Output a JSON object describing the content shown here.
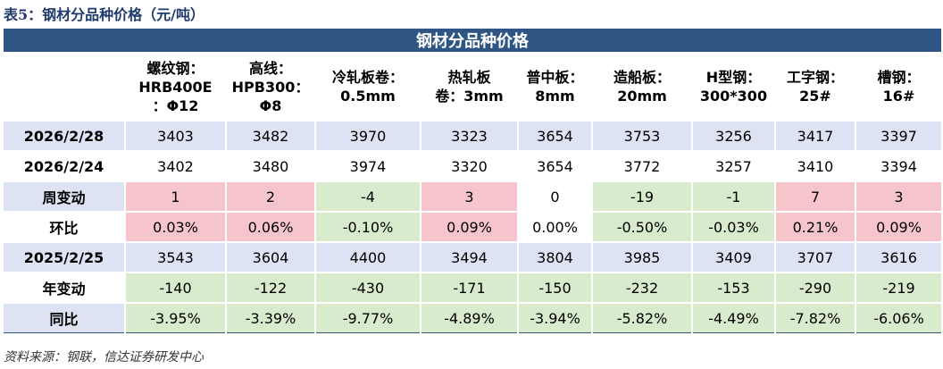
{
  "caption": "表5：钢材分品种价格（元/吨）",
  "table": {
    "title": "钢材分品种价格",
    "header_fill": "#2f5585",
    "sign_colors": {
      "up": "#f5c5cb",
      "down": "#d8ebcc"
    },
    "headers": [
      [
        "螺纹钢：",
        "HRB400E",
        "：Φ12"
      ],
      [
        "高线：",
        "HPB300：",
        "Φ8"
      ],
      [
        "冷轧板卷：",
        "0.5mm"
      ],
      [
        "热轧板",
        "卷：3mm"
      ],
      [
        "普中板：",
        "8mm"
      ],
      [
        "造船板：",
        "20mm"
      ],
      [
        "H型钢：",
        "300*300"
      ],
      [
        "工字钢：",
        "25#"
      ],
      [
        "槽钢：",
        "16#"
      ]
    ],
    "rows": [
      {
        "label": "2026/2/28",
        "fill": "#dde3f3",
        "label_fill": "#dde3f3",
        "sign_colored": false,
        "values": [
          "3403",
          "3482",
          "3970",
          "3323",
          "3654",
          "3753",
          "3256",
          "3417",
          "3397"
        ]
      },
      {
        "label": "2026/2/24",
        "fill": "#ffffff",
        "label_fill": "#ffffff",
        "sign_colored": false,
        "values": [
          "3402",
          "3480",
          "3974",
          "3320",
          "3654",
          "3772",
          "3257",
          "3410",
          "3394"
        ]
      },
      {
        "label": "周变动",
        "fill": "#ffffff",
        "label_fill": "#dde3f3",
        "sign_colored": true,
        "values": [
          "1",
          "2",
          "-4",
          "3",
          "0",
          "-19",
          "-1",
          "7",
          "3"
        ]
      },
      {
        "label": "环比",
        "fill": "#ffffff",
        "label_fill": "#ffffff",
        "sign_colored": true,
        "values": [
          "0.03%",
          "0.06%",
          "-0.10%",
          "0.09%",
          "0.00%",
          "-0.50%",
          "-0.03%",
          "0.21%",
          "0.09%"
        ]
      },
      {
        "label": "2025/2/25",
        "fill": "#dde3f3",
        "label_fill": "#dde3f3",
        "sign_colored": false,
        "values": [
          "3543",
          "3604",
          "4400",
          "3494",
          "3804",
          "3985",
          "3409",
          "3707",
          "3616"
        ]
      },
      {
        "label": "年变动",
        "fill": "#ffffff",
        "label_fill": "#ffffff",
        "sign_colored": true,
        "values": [
          "-140",
          "-122",
          "-430",
          "-171",
          "-150",
          "-232",
          "-153",
          "-290",
          "-219"
        ]
      },
      {
        "label": "同比",
        "fill": "#ffffff",
        "label_fill": "#dde3f3",
        "sign_colored": true,
        "values": [
          "-3.95%",
          "-3.39%",
          "-9.77%",
          "-4.89%",
          "-3.94%",
          "-5.82%",
          "-4.49%",
          "-7.82%",
          "-6.06%"
        ]
      }
    ]
  },
  "source": "资料来源：钢联，信达证券研发中心"
}
